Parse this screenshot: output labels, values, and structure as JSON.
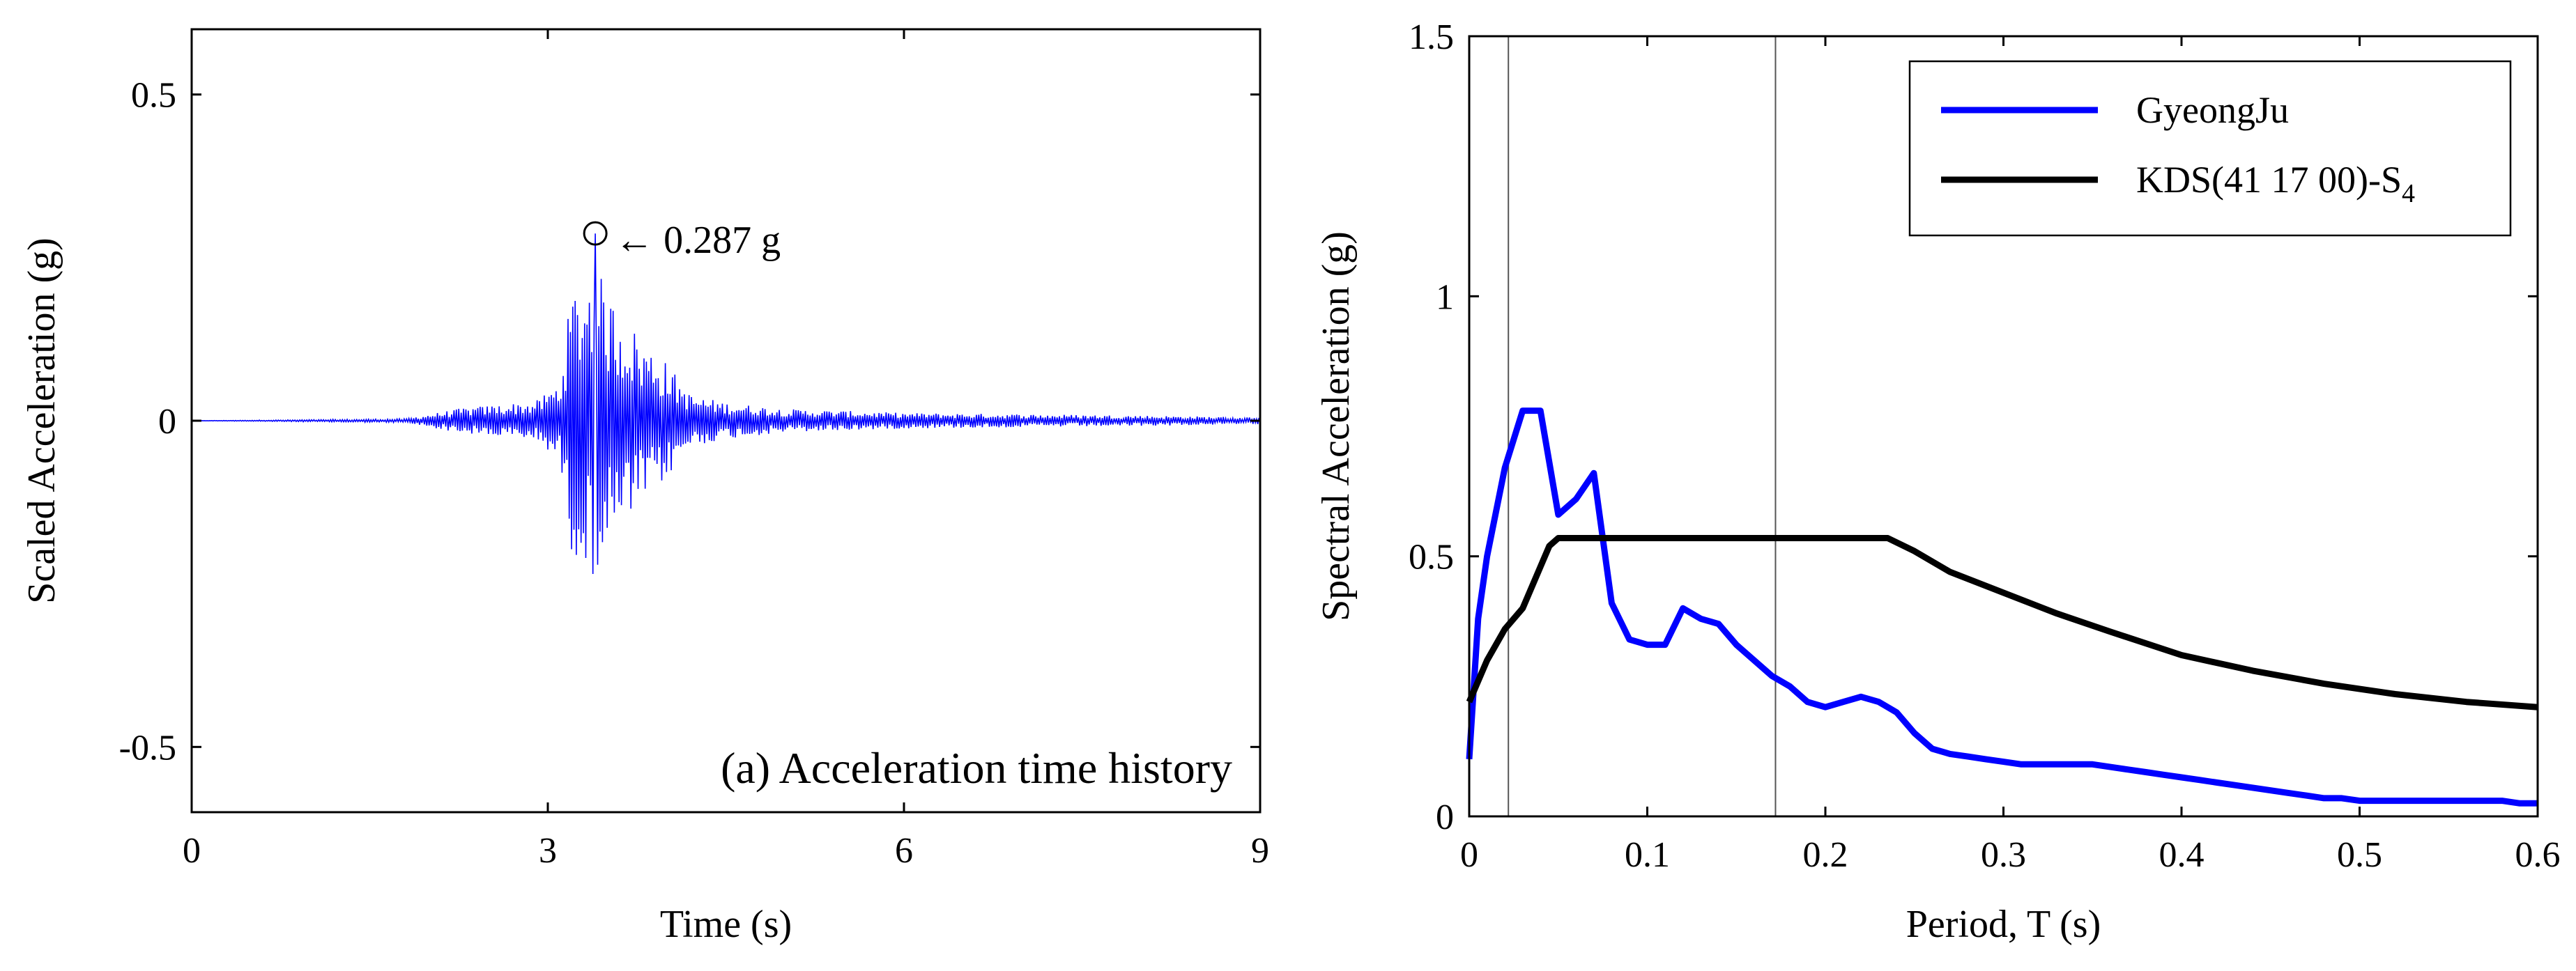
{
  "chart_data": [
    {
      "type": "line",
      "title": "(a) Acceleration time history",
      "xlabel": "Time (s)",
      "ylabel": "Scaled Acceleration (g)",
      "xlim": [
        0,
        9
      ],
      "ylim": [
        -0.6,
        0.6
      ],
      "xticks": [
        0,
        3,
        6,
        9
      ],
      "xtick_labels": [
        "0",
        "3",
        "6",
        "9"
      ],
      "yticks": [
        -0.5,
        0,
        0.5
      ],
      "ytick_labels": [
        "-0.5",
        "0",
        "0.5"
      ],
      "series": [
        {
          "name": "Scaled acceleration",
          "color": "#0000ff",
          "envelope": {
            "t": [
              0,
              1.8,
              2.0,
              2.3,
              2.6,
              2.9,
              3.1,
              3.2,
              3.3,
              3.4,
              3.5,
              3.6,
              3.7,
              3.8,
              3.9,
              4.0,
              4.2,
              4.5,
              5.0,
              6.0,
              7.0,
              8.0,
              9.0
            ],
            "amp": [
              0,
              0.003,
              0.01,
              0.02,
              0.025,
              0.03,
              0.06,
              0.2,
              0.22,
              0.24,
              0.2,
              0.17,
              0.15,
              0.12,
              0.11,
              0.09,
              0.04,
              0.028,
              0.018,
              0.012,
              0.01,
              0.008,
              0.005
            ]
          },
          "sampling_dt": 0.01
        }
      ],
      "peak": {
        "t": 3.4,
        "value": 0.287,
        "label": "← 0.287 g"
      }
    },
    {
      "type": "line",
      "title": "",
      "xlabel": "Period, T (s)",
      "ylabel": "Spectral Acceleration (g)",
      "xlim": [
        0,
        0.6
      ],
      "ylim": [
        0,
        1.5
      ],
      "xticks": [
        0,
        0.1,
        0.2,
        0.3,
        0.4,
        0.5,
        0.6
      ],
      "xtick_labels": [
        "0",
        "0.1",
        "0.2",
        "0.3",
        "0.4",
        "0.5",
        "0.6"
      ],
      "yticks": [
        0,
        0.5,
        1,
        1.5
      ],
      "ytick_labels": [
        "0",
        "0.5",
        "1",
        "1.5"
      ],
      "vlines": [
        0.022,
        0.172
      ],
      "legend": {
        "position": "top-right",
        "entries": [
          {
            "label": "GyeongJu",
            "color": "#0000ff"
          },
          {
            "label_main": "KDS(41 17 00)-S",
            "label_sub": "4",
            "color": "#000000"
          }
        ]
      },
      "series": [
        {
          "name": "GyeongJu",
          "color": "#0000ff",
          "x": [
            0,
            0.005,
            0.01,
            0.02,
            0.03,
            0.04,
            0.05,
            0.06,
            0.07,
            0.08,
            0.09,
            0.1,
            0.11,
            0.12,
            0.13,
            0.14,
            0.15,
            0.16,
            0.17,
            0.18,
            0.19,
            0.2,
            0.21,
            0.22,
            0.23,
            0.24,
            0.25,
            0.26,
            0.27,
            0.28,
            0.29,
            0.3,
            0.31,
            0.32,
            0.33,
            0.34,
            0.35,
            0.36,
            0.37,
            0.38,
            0.39,
            0.4,
            0.41,
            0.42,
            0.43,
            0.44,
            0.45,
            0.46,
            0.47,
            0.48,
            0.49,
            0.5,
            0.52,
            0.54,
            0.56,
            0.58,
            0.59,
            0.6
          ],
          "y": [
            0.11,
            0.38,
            0.5,
            0.67,
            0.78,
            0.78,
            0.58,
            0.61,
            0.66,
            0.41,
            0.34,
            0.33,
            0.33,
            0.4,
            0.38,
            0.37,
            0.33,
            0.3,
            0.27,
            0.25,
            0.22,
            0.21,
            0.22,
            0.23,
            0.22,
            0.2,
            0.16,
            0.13,
            0.12,
            0.115,
            0.11,
            0.105,
            0.1,
            0.1,
            0.1,
            0.1,
            0.1,
            0.095,
            0.09,
            0.085,
            0.08,
            0.075,
            0.07,
            0.065,
            0.06,
            0.055,
            0.05,
            0.045,
            0.04,
            0.035,
            0.035,
            0.03,
            0.03,
            0.03,
            0.03,
            0.03,
            0.025,
            0.025
          ]
        },
        {
          "name": "KDS(41 17 00)-S4",
          "color": "#000000",
          "x": [
            0,
            0.01,
            0.02,
            0.03,
            0.04,
            0.045,
            0.05,
            0.06,
            0.1,
            0.15,
            0.2,
            0.235,
            0.25,
            0.27,
            0.3,
            0.33,
            0.36,
            0.4,
            0.44,
            0.48,
            0.52,
            0.56,
            0.6
          ],
          "y": [
            0.22,
            0.3,
            0.36,
            0.4,
            0.48,
            0.52,
            0.535,
            0.535,
            0.535,
            0.535,
            0.535,
            0.535,
            0.51,
            0.47,
            0.43,
            0.39,
            0.355,
            0.31,
            0.28,
            0.255,
            0.235,
            0.22,
            0.21
          ]
        }
      ]
    }
  ]
}
